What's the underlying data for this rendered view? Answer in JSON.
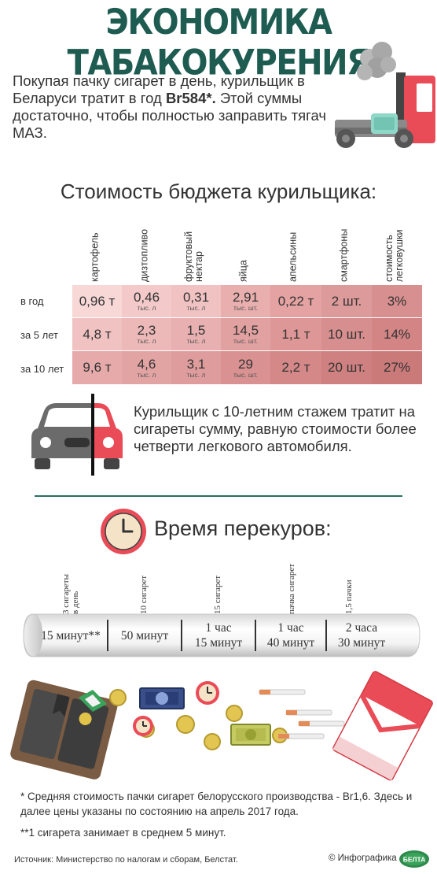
{
  "title": "ЭКОНОМИКА ТАБАКОКУРЕНИЯ",
  "intro": {
    "text_before": "Покупая пачку сигарет в день, курильщик в Беларуси тратит в год ",
    "amount": "Br584*.",
    "text_after": " Этой суммы достаточно, чтобы полностью заправить тягач МАЗ."
  },
  "budget": {
    "title": "Стоимость бюджета курильщика:",
    "columns": [
      "картофель",
      "дизтопливо",
      "фруктовый\nнектар",
      "яйца",
      "апельсины",
      "смартфоны",
      "стоимость\nлегковушки"
    ],
    "rows": [
      {
        "label": "в год",
        "cells": [
          {
            "v": "0,96 т",
            "u": ""
          },
          {
            "v": "0,46",
            "u": "тыс. л"
          },
          {
            "v": "0,31",
            "u": "тыс. л"
          },
          {
            "v": "2,91",
            "u": "тыс. шт."
          },
          {
            "v": "0,22 т",
            "u": ""
          },
          {
            "v": "2 шт.",
            "u": ""
          },
          {
            "v": "3%",
            "u": ""
          }
        ]
      },
      {
        "label": "за 5 лет",
        "cells": [
          {
            "v": "4,8 т",
            "u": ""
          },
          {
            "v": "2,3",
            "u": "тыс. л"
          },
          {
            "v": "1,5",
            "u": "тыс. л"
          },
          {
            "v": "14,5",
            "u": "тыс. шт."
          },
          {
            "v": "1,1 т",
            "u": ""
          },
          {
            "v": "10 шт.",
            "u": ""
          },
          {
            "v": "14%",
            "u": ""
          }
        ]
      },
      {
        "label": "за 10 лет",
        "cells": [
          {
            "v": "9,6 т",
            "u": ""
          },
          {
            "v": "4,6",
            "u": "тыс. л"
          },
          {
            "v": "3,1",
            "u": "тыс. л"
          },
          {
            "v": "29",
            "u": "тыс. шт."
          },
          {
            "v": "2,2 т",
            "u": ""
          },
          {
            "v": "20 шт.",
            "u": ""
          },
          {
            "v": "27%",
            "u": ""
          }
        ]
      }
    ]
  },
  "car_text": "Курильщик с 10-летним стажем тратит на сигареты сумму, равную стоимости более четверти легкового автомобиля.",
  "smoke_time": {
    "title": "Время перекуров:",
    "marks": [
      "3 сигареты\nв день",
      "10 сигарет",
      "15 сигарет",
      "пачка сигарет",
      "1,5 пачки"
    ],
    "values": [
      "15 минут**",
      "50 минут",
      "1 час\n15 минут",
      "1 час\n40 минут",
      "2 часа\n30 минут"
    ]
  },
  "footnotes": {
    "first": "* Средняя стоимость пачки сигарет белорусского производства - Br1,6. Здесь и далее цены указаны по состоянию на апрель 2017 года.",
    "second": "**1 сигарета занимает в среднем 5 минут."
  },
  "source": "Источник: Министерство по налогам и сборам, Белстат.",
  "credit": "© Инфографика",
  "logo_text": "БЕЛТА",
  "colors": {
    "title": "#1e5c52",
    "cell_light": "#f6d2d2",
    "cell_mid": "#e8a8a8",
    "cell_dark": "#d48686",
    "accent_red": "#e94b57",
    "divider": "#2b6e64"
  },
  "icons": [
    "truck-icon",
    "car-icon",
    "clock-icon",
    "wallet-icon",
    "banknote-icon",
    "coin-icon",
    "cigarette-icon",
    "cigarette-pack-icon"
  ]
}
